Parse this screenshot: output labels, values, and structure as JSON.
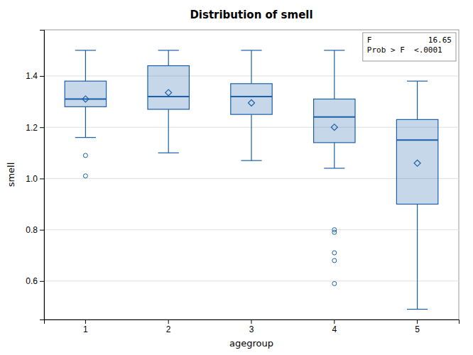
{
  "chart_data": {
    "type": "box",
    "title": "Distribution of smell",
    "xlabel": "agegroup",
    "ylabel": "smell",
    "categories": [
      "1",
      "2",
      "3",
      "4",
      "5"
    ],
    "boxes": [
      {
        "q1": 1.28,
        "median": 1.31,
        "q3": 1.38,
        "whisker_low": 1.16,
        "whisker_high": 1.5,
        "mean": 1.31,
        "outliers": [
          1.09,
          1.01
        ]
      },
      {
        "q1": 1.27,
        "median": 1.32,
        "q3": 1.44,
        "whisker_low": 1.1,
        "whisker_high": 1.5,
        "mean": 1.335,
        "outliers": []
      },
      {
        "q1": 1.25,
        "median": 1.32,
        "q3": 1.37,
        "whisker_low": 1.07,
        "whisker_high": 1.5,
        "mean": 1.295,
        "outliers": []
      },
      {
        "q1": 1.14,
        "median": 1.24,
        "q3": 1.31,
        "whisker_low": 1.04,
        "whisker_high": 1.5,
        "mean": 1.2,
        "outliers": [
          0.8,
          0.79,
          0.71,
          0.68,
          0.59
        ]
      },
      {
        "q1": 0.9,
        "median": 1.15,
        "q3": 1.23,
        "whisker_low": 0.49,
        "whisker_high": 1.38,
        "mean": 1.06,
        "outliers": []
      }
    ],
    "color": "#1a5fa8",
    "ylim": [
      0.45,
      1.58
    ],
    "yticks": [
      0.6,
      0.8,
      {
        "value": 1.0,
        "label": "1.0"
      },
      1.2,
      1.4
    ],
    "grid": true,
    "annotations": [
      "F            16.65",
      "Prob > F  <.0001"
    ]
  }
}
